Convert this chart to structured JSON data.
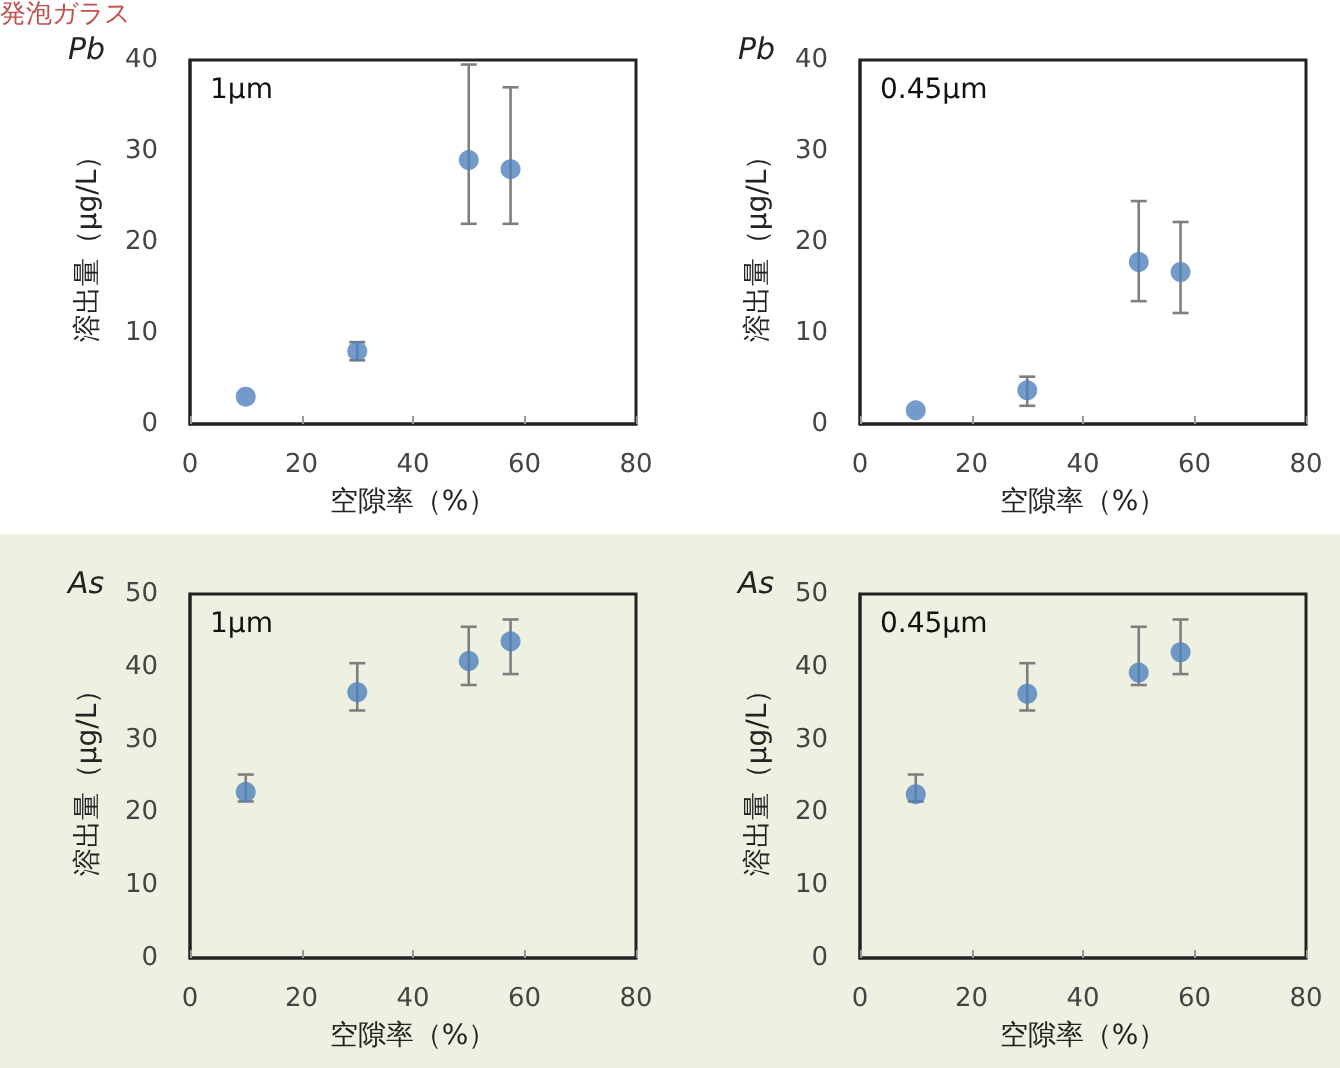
{
  "chart_data": [
    {
      "type": "scatter",
      "title": "Pb",
      "annotations": [
        "発泡ガラス",
        "1µm"
      ],
      "xlabel": "空隙率（%）",
      "ylabel": "溶出量（µg/L）",
      "x": [
        10,
        30,
        50,
        57.5
      ],
      "xlim": [
        0,
        80
      ],
      "xticks": [
        0,
        20,
        40,
        60,
        80
      ],
      "ylim": [
        0,
        40
      ],
      "yticks": [
        0,
        10,
        20,
        30,
        40
      ],
      "marker": "circle",
      "series": [
        {
          "color": "#4f81bd",
          "values": [
            3,
            8,
            29,
            28
          ],
          "errors": [
            null,
            [
              7,
              9
            ],
            [
              22,
              39.5
            ],
            [
              22,
              37
            ]
          ]
        }
      ]
    },
    {
      "type": "scatter",
      "title": "Pb",
      "annotations": [
        "0.45µm"
      ],
      "xlabel": "空隙率（%）",
      "ylabel": "溶出量（µg/L）",
      "x": [
        10,
        30,
        50,
        57.5
      ],
      "xlim": [
        0,
        80
      ],
      "xticks": [
        0,
        20,
        40,
        60,
        80
      ],
      "ylim": [
        0,
        40
      ],
      "yticks": [
        0,
        10,
        20,
        30,
        40
      ],
      "marker": "circle",
      "series": [
        {
          "color": "#4f81bd",
          "values": [
            1.5,
            3.7,
            17.8,
            16.7
          ],
          "errors": [
            null,
            [
              2,
              5.2
            ],
            [
              13.5,
              24.5
            ],
            [
              12.2,
              22.2
            ]
          ]
        }
      ]
    },
    {
      "type": "scatter",
      "title": "As",
      "annotations": [
        "1µm"
      ],
      "xlabel": "空隙率（%）",
      "ylabel": "溶出量（µg/L）",
      "x": [
        10,
        30,
        50,
        57.5
      ],
      "xlim": [
        0,
        80
      ],
      "xticks": [
        0,
        20,
        40,
        60,
        80
      ],
      "ylim": [
        0,
        50
      ],
      "yticks": [
        0,
        10,
        20,
        30,
        40,
        50
      ],
      "marker": "circle",
      "series": [
        {
          "color": "#4f81bd",
          "values": [
            22.8,
            36.5,
            40.8,
            43.5
          ],
          "errors": [
            [
              21.5,
              25.2
            ],
            [
              34,
              40.5
            ],
            [
              37.5,
              45.5
            ],
            [
              39,
              46.5
            ]
          ]
        }
      ]
    },
    {
      "type": "scatter",
      "title": "As",
      "annotations": [
        "0.45µm"
      ],
      "xlabel": "空隙率（%）",
      "ylabel": "溶出量（µg/L）",
      "x": [
        10,
        30,
        50,
        57.5
      ],
      "xlim": [
        0,
        80
      ],
      "xticks": [
        0,
        20,
        40,
        60,
        80
      ],
      "ylim": [
        0,
        50
      ],
      "yticks": [
        0,
        10,
        20,
        30,
        40,
        50
      ],
      "marker": "circle",
      "series": [
        {
          "color": "#4f81bd",
          "values": [
            22.5,
            36.3,
            39.2,
            42
          ],
          "errors": [
            [
              21.5,
              25.2
            ],
            [
              34,
              40.5
            ],
            [
              37.5,
              45.5
            ],
            [
              39,
              46.5
            ]
          ]
        }
      ]
    }
  ]
}
